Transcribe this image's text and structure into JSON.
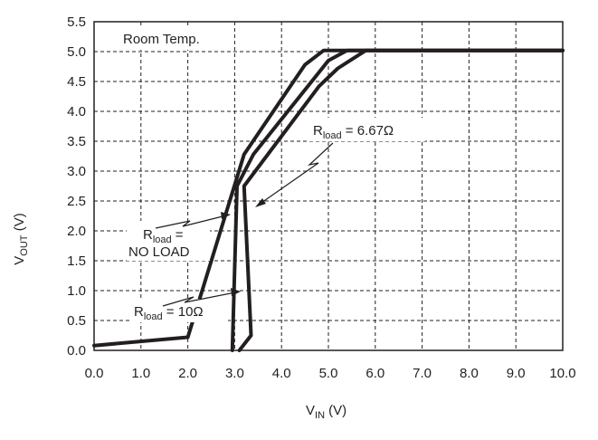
{
  "chart_data": {
    "type": "line",
    "xlim": [
      0,
      10
    ],
    "ylim": [
      0,
      5.5
    ],
    "xticks": [
      "0.0",
      "1.0",
      "2.0",
      "3.0",
      "4.0",
      "5.0",
      "6.0",
      "7.0",
      "8.0",
      "9.0",
      "10.0"
    ],
    "yticks": [
      "0.0",
      "0.5",
      "1.0",
      "1.5",
      "2.0",
      "2.5",
      "3.0",
      "3.5",
      "4.0",
      "4.5",
      "5.0",
      "5.5"
    ],
    "xlabel": {
      "main": "V",
      "sub": "IN",
      "unit": " (V)"
    },
    "ylabel": {
      "main": "V",
      "sub": "OUT",
      "unit": " (V)"
    },
    "grid": true,
    "room_label": "Room Temp.",
    "series": [
      {
        "label_main": "R",
        "label_sub": "load",
        "label_rest": " =",
        "label_line2": "NO LOAD",
        "points": [
          [
            0,
            0.08
          ],
          [
            2.0,
            0.22
          ],
          [
            3.2,
            3.28
          ],
          [
            4.5,
            4.78
          ],
          [
            4.9,
            5.02
          ],
          [
            10,
            5.02
          ]
        ]
      },
      {
        "label_main": "R",
        "label_sub": "load",
        "label_rest": " = 6.67Ω",
        "points": [
          [
            2.95,
            0
          ],
          [
            3.05,
            2.75
          ],
          [
            3.4,
            3.28
          ],
          [
            5.0,
            4.85
          ],
          [
            5.4,
            5.02
          ],
          [
            10,
            5.02
          ]
        ]
      },
      {
        "label_main": "R",
        "label_sub": "load",
        "label_rest": " = 10Ω",
        "points": [
          [
            3.1,
            0
          ],
          [
            3.35,
            0.25
          ],
          [
            3.2,
            2.75
          ],
          [
            4.8,
            4.42
          ],
          [
            5.2,
            4.72
          ],
          [
            5.8,
            5.02
          ],
          [
            10,
            5.02
          ]
        ]
      }
    ]
  }
}
